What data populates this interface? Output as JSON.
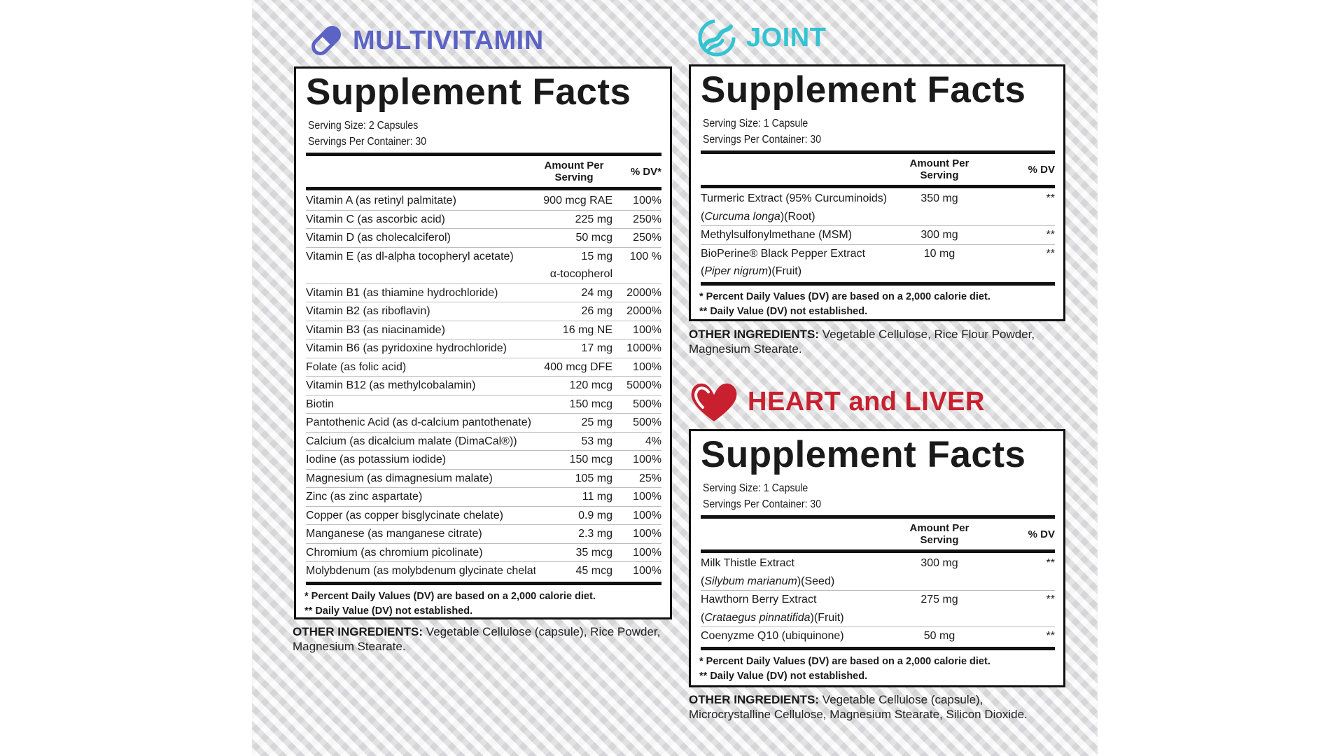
{
  "products": [
    {
      "title": "MULTIVITAMIN",
      "icon": "pill-icon",
      "color": "#5b63c4",
      "panel_title": "Supplement Facts",
      "serving_size": "Serving Size: 2 Capsules",
      "servings_per_container": "Servings Per Container: 30",
      "col_amount": "Amount Per Serving",
      "col_dv": "% DV*",
      "rows": [
        {
          "name": "Vitamin A (as retinyl palmitate)",
          "amount": "900 mcg RAE",
          "dv": "100%"
        },
        {
          "name": "Vitamin C (as ascorbic acid)",
          "amount": "225 mg",
          "dv": "250%"
        },
        {
          "name": "Vitamin D (as cholecalciferol)",
          "amount": "50 mcg",
          "dv": "250%"
        },
        {
          "name": "Vitamin E (as dl-alpha tocopheryl acetate)",
          "amount": "15 mg",
          "amount2": "α-tocopherol",
          "dv": "100 %"
        },
        {
          "name": "Vitamin B1 (as thiamine hydrochloride)",
          "amount": "24 mg",
          "dv": "2000%"
        },
        {
          "name": "Vitamin B2 (as riboflavin)",
          "amount": "26 mg",
          "dv": "2000%"
        },
        {
          "name": "Vitamin B3 (as niacinamide)",
          "amount": "16 mg NE",
          "dv": "100%"
        },
        {
          "name": "Vitamin B6 (as pyridoxine hydrochloride)",
          "amount": "17 mg",
          "dv": "1000%"
        },
        {
          "name": "Folate (as folic acid)",
          "amount": "400 mcg DFE",
          "dv": "100%"
        },
        {
          "name": "Vitamin B12 (as methylcobalamin)",
          "amount": "120 mcg",
          "dv": "5000%"
        },
        {
          "name": "Biotin",
          "amount": "150 mcg",
          "dv": "500%"
        },
        {
          "name": "Pantothenic Acid (as d-calcium pantothenate)",
          "amount": "25 mg",
          "dv": "500%"
        },
        {
          "name": "Calcium (as dicalcium malate (DimaCal®))",
          "amount": "53 mg",
          "dv": "4%"
        },
        {
          "name": "Iodine (as potassium iodide)",
          "amount": "150 mcg",
          "dv": "100%"
        },
        {
          "name": "Magnesium (as dimagnesium malate)",
          "amount": "105 mg",
          "dv": "25%"
        },
        {
          "name": "Zinc (as zinc aspartate)",
          "amount": "11 mg",
          "dv": "100%"
        },
        {
          "name": "Copper (as copper bisglycinate chelate)",
          "amount": "0.9 mg",
          "dv": "100%"
        },
        {
          "name": "Manganese (as manganese citrate)",
          "amount": "2.3 mg",
          "dv": "100%"
        },
        {
          "name": "Chromium (as chromium picolinate)",
          "amount": "35 mcg",
          "dv": "100%"
        },
        {
          "name": "Molybdenum (as molybdenum glycinate chelate)",
          "amount": "45 mcg",
          "dv": "100%"
        }
      ],
      "footnote1": "* Percent Daily Values (DV) are based on a 2,000 calorie diet.",
      "footnote2": "** Daily Value (DV) not established.",
      "other_label": "OTHER INGREDIENTS:",
      "other_text": "Vegetable Cellulose (capsule), Rice Powder, Magnesium Stearate."
    },
    {
      "title": "JOINT",
      "icon": "joint-icon",
      "color": "#35c3d3",
      "panel_title": "Supplement Facts",
      "serving_size": "Serving Size: 1 Capsule",
      "servings_per_container": "Servings Per Container: 30",
      "col_amount": "Amount Per Serving",
      "col_dv": "% DV",
      "rows": [
        {
          "name": "Turmeric Extract (95% Curcuminoids)",
          "name_italic": "Curcuma longa",
          "name_suffix": ")(Root)",
          "amount": "350 mg",
          "dv": "**"
        },
        {
          "name": "Methylsulfonylmethane (MSM)",
          "amount": "300 mg",
          "dv": "**"
        },
        {
          "name": "BioPerine® Black Pepper Extract",
          "name_italic": "Piper nigrum",
          "name_suffix": ")(Fruit)",
          "amount": "10 mg",
          "dv": "**"
        }
      ],
      "footnote1": "* Percent Daily Values (DV) are based on a 2,000 calorie diet.",
      "footnote2": "** Daily Value (DV) not established.",
      "other_label": "OTHER INGREDIENTS:",
      "other_text": "Vegetable Cellulose, Rice Flour Powder, Magnesium Stearate."
    },
    {
      "title": "HEART and LIVER",
      "icon": "heart-icon",
      "color": "#c8202f",
      "panel_title": "Supplement Facts",
      "serving_size": "Serving Size: 1 Capsule",
      "servings_per_container": "Servings Per Container: 30",
      "col_amount": "Amount Per Serving",
      "col_dv": "% DV",
      "rows": [
        {
          "name": "Milk Thistle Extract",
          "name_italic": "Silybum marianum",
          "name_suffix": ")(Seed)",
          "amount": "300 mg",
          "dv": "**"
        },
        {
          "name": "Hawthorn Berry Extract",
          "name_italic": "Crataegus pinnatifida",
          "name_suffix": ")(Fruit)",
          "amount": "275 mg",
          "dv": "**"
        },
        {
          "name": "Coenyzme Q10 (ubiquinone)",
          "amount": "50 mg",
          "dv": "**"
        }
      ],
      "footnote1": "* Percent Daily Values (DV) are based on a 2,000 calorie diet.",
      "footnote2": "** Daily Value (DV) not established.",
      "other_label": "OTHER INGREDIENTS:",
      "other_text": "Vegetable Cellulose (capsule), Microcrystalline Cellulose, Magnesium Stearate, Silicon Dioxide."
    }
  ]
}
